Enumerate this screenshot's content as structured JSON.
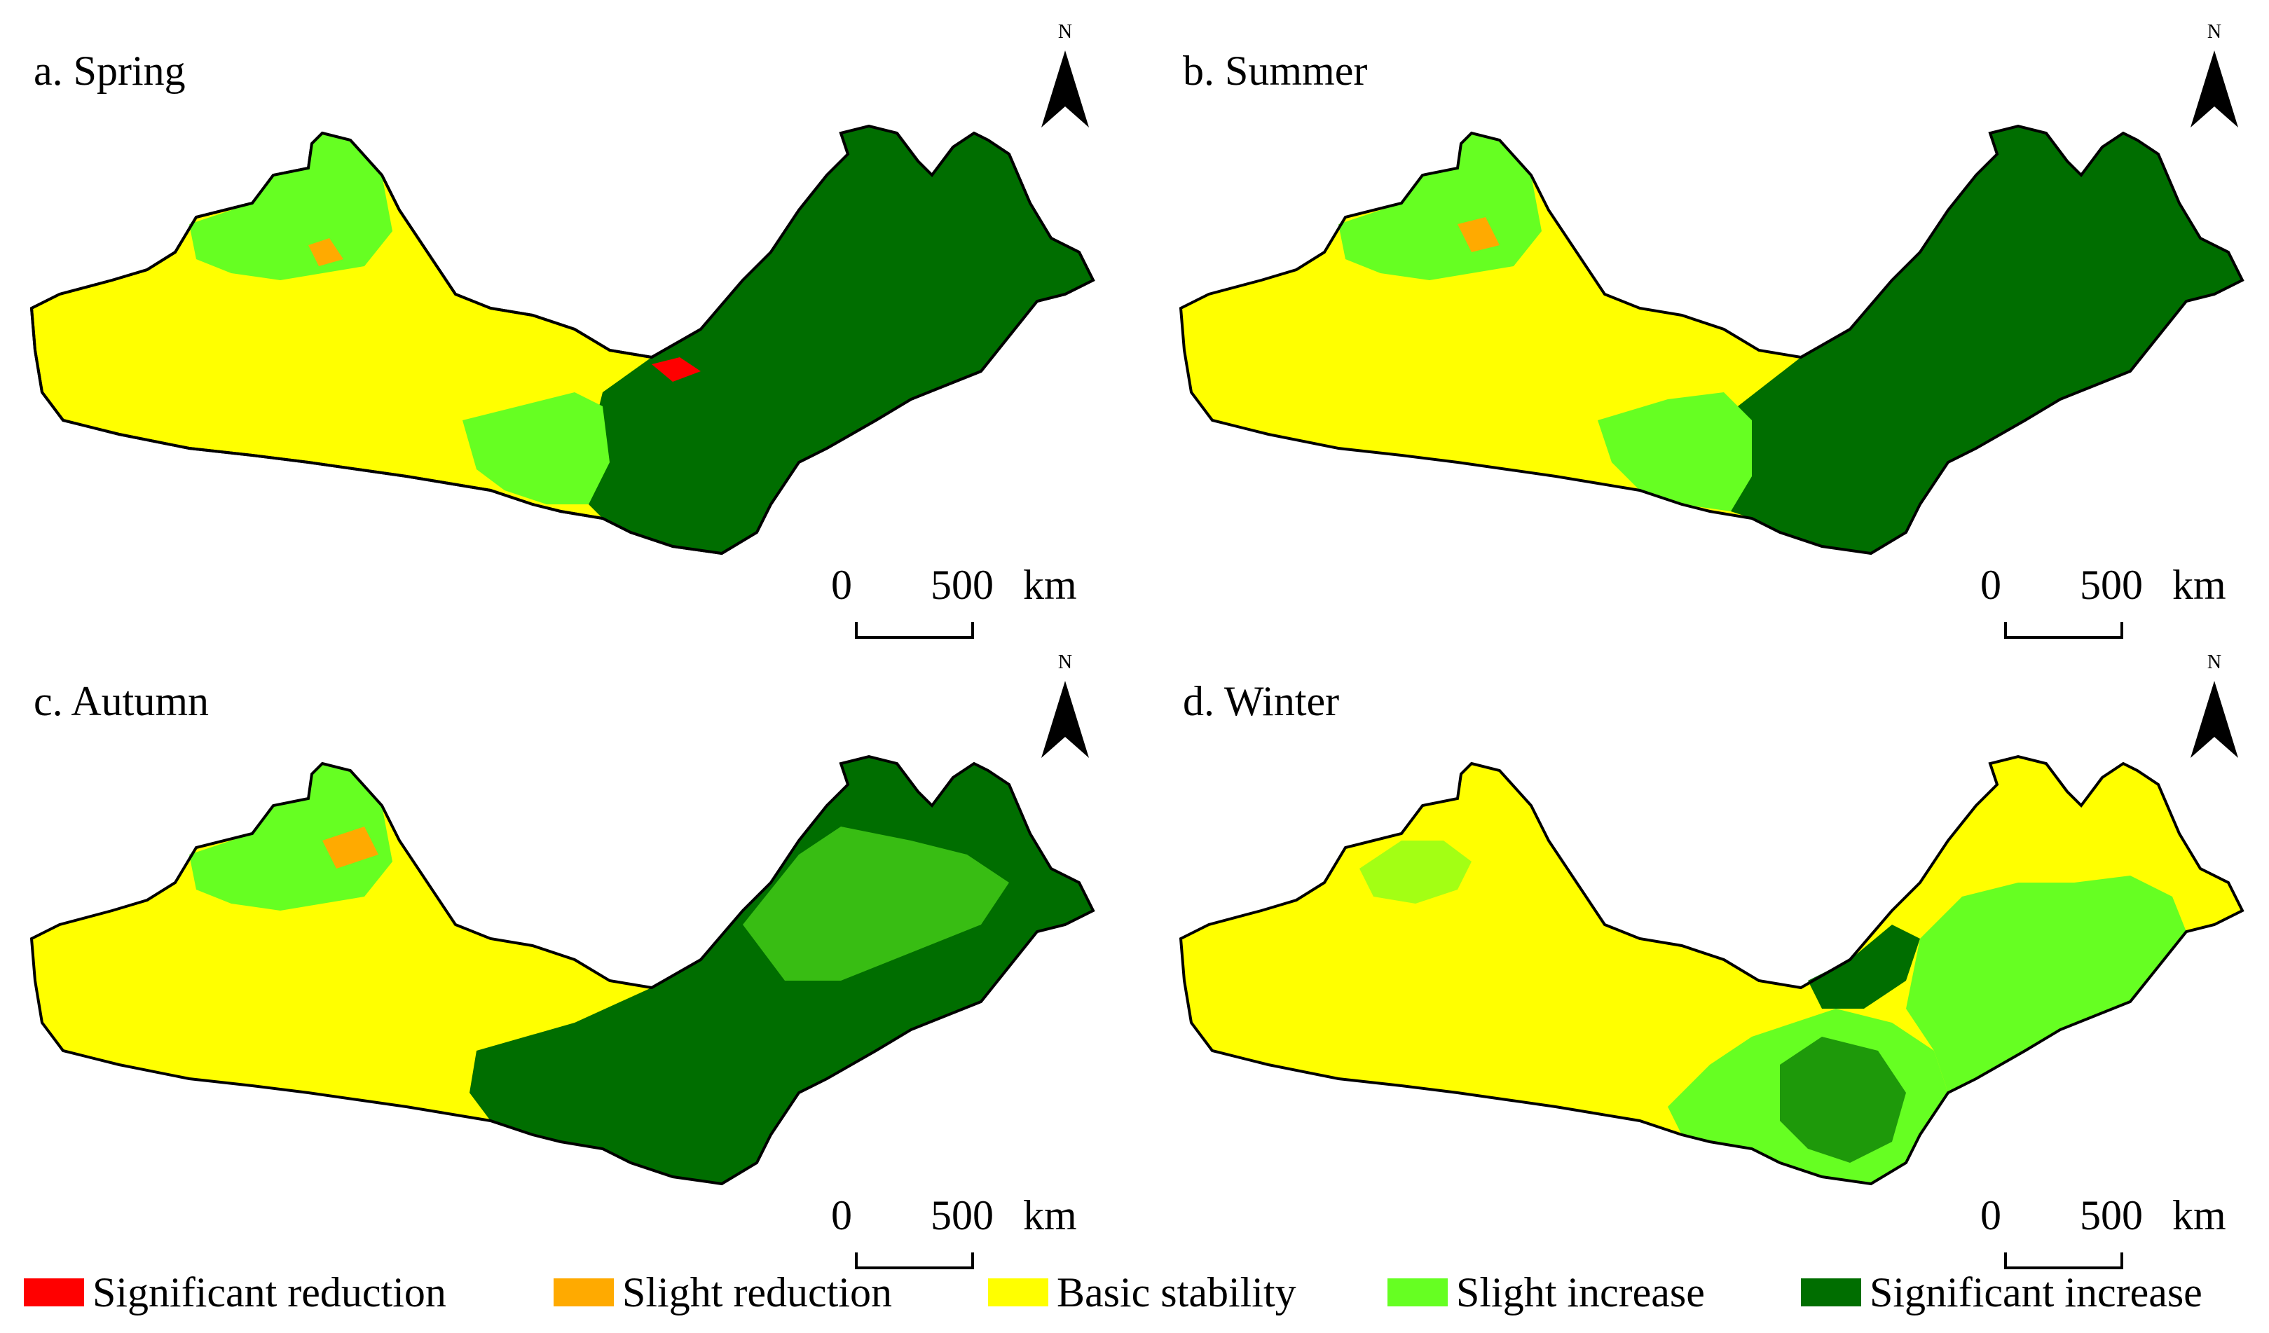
{
  "colors": {
    "significant_reduction": "#ff0000",
    "slight_reduction": "#ffaa00",
    "basic_stability": "#ffff00",
    "slight_increase": "#66ff22",
    "significant_increase": "#006e00",
    "boundary": "#000000"
  },
  "panels": [
    {
      "title": "a. Spring",
      "north_label": "N",
      "scale": {
        "zero": "0",
        "max": "500",
        "unit": "km"
      },
      "dominant_east": "significant_increase",
      "dominant_west": "basic_stability"
    },
    {
      "title": "b. Summer",
      "north_label": "N",
      "scale": {
        "zero": "0",
        "max": "500",
        "unit": "km"
      },
      "dominant_east": "significant_increase",
      "dominant_west": "basic_stability"
    },
    {
      "title": "c. Autumn",
      "north_label": "N",
      "scale": {
        "zero": "0",
        "max": "500",
        "unit": "km"
      },
      "dominant_east": "significant_increase",
      "dominant_west": "basic_stability"
    },
    {
      "title": "d. Winter",
      "north_label": "N",
      "scale": {
        "zero": "0",
        "max": "500",
        "unit": "km"
      },
      "dominant_east": "basic_stability",
      "dominant_west": "basic_stability"
    }
  ],
  "legend": [
    {
      "key": "significant_reduction",
      "label": "Significant reduction",
      "color": "#ff0000"
    },
    {
      "key": "slight_reduction",
      "label": "Slight reduction",
      "color": "#ffaa00"
    },
    {
      "key": "basic_stability",
      "label": "Basic stability",
      "color": "#ffff00"
    },
    {
      "key": "slight_increase",
      "label": "Slight increase",
      "color": "#66ff22"
    },
    {
      "key": "significant_increase",
      "label": "Significant increase",
      "color": "#006e00"
    }
  ]
}
